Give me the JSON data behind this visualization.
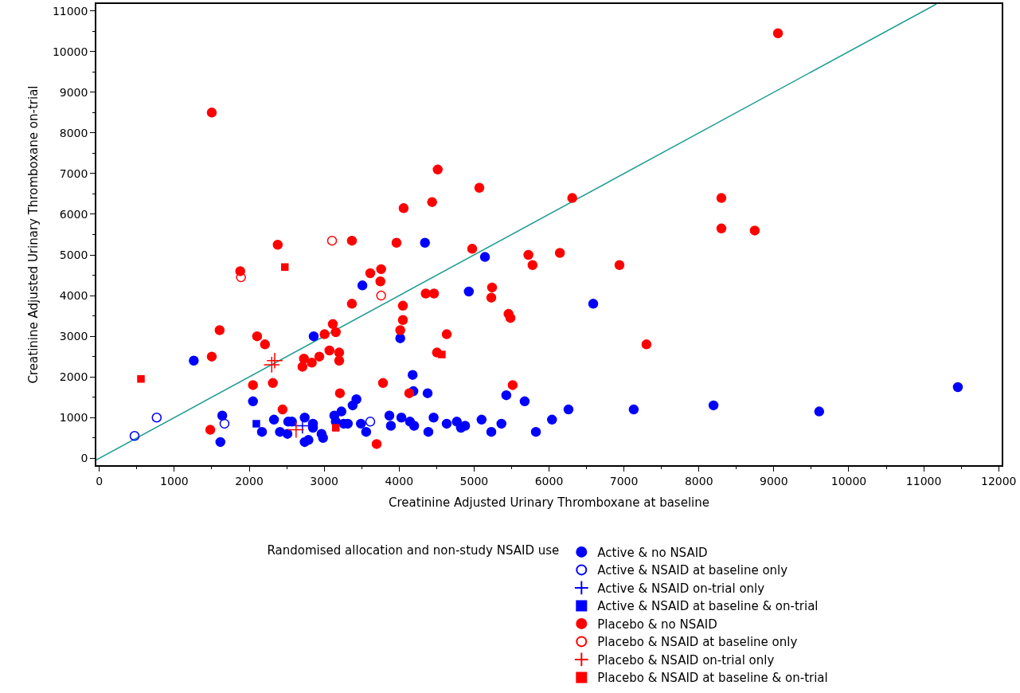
{
  "chart_data": {
    "type": "scatter",
    "xlabel": "Creatinine Adjusted Urinary Thromboxane at baseline",
    "ylabel": "Creatinine Adjusted Urinary Thromboxane on-trial",
    "legend_title": "Randomised allocation and non-study NSAID use",
    "legend": "bottom",
    "xlim": [
      -40,
      12040
    ],
    "ylim": [
      -170,
      11170
    ],
    "xticks": [
      0,
      1000,
      2000,
      3000,
      4000,
      5000,
      6000,
      7000,
      8000,
      9000,
      10000,
      11000,
      12000
    ],
    "yticks": [
      0,
      1000,
      2000,
      3000,
      4000,
      5000,
      6000,
      7000,
      8000,
      9000,
      10000,
      11000
    ],
    "series": [
      {
        "type": "line",
        "color": "#1a9a8f",
        "x": [
          -40,
          11170
        ],
        "values": [
          -40,
          11170
        ],
        "marker": "none",
        "line_style": "solid"
      },
      {
        "name": "Active & no NSAID",
        "color": "#0000ff",
        "marker": "circle",
        "x": [
          1260,
          2860,
          2050,
          1640,
          1615,
          2170,
          2330,
          2410,
          2510,
          2520,
          2570,
          2740,
          2740,
          2790,
          2850,
          2850,
          2965,
          2985,
          3135,
          3155,
          3230,
          3260,
          3315,
          3380,
          3430,
          3490,
          3560,
          3870,
          3890,
          4015,
          4030,
          4145,
          4180,
          4190,
          4380,
          4200,
          4390,
          4460,
          4635,
          4770,
          4825,
          4880,
          5100,
          5230,
          5365,
          5430,
          5675,
          5825,
          6040,
          6260,
          6590,
          7130,
          8195,
          9605,
          11455,
          5145,
          3510,
          4345,
          4930
        ],
        "values": [
          2400,
          3000,
          1400,
          1050,
          400,
          650,
          950,
          650,
          600,
          900,
          900,
          1000,
          400,
          450,
          850,
          750,
          600,
          500,
          1050,
          900,
          1150,
          850,
          850,
          1300,
          1450,
          850,
          650,
          1050,
          800,
          2950,
          1000,
          900,
          2050,
          1650,
          1600,
          800,
          650,
          1000,
          850,
          900,
          750,
          800,
          950,
          650,
          850,
          1550,
          1400,
          650,
          950,
          1200,
          3800,
          1200,
          1300,
          1150,
          1750,
          4950,
          4250,
          5300,
          4100
        ]
      },
      {
        "name": "Active & NSAID at baseline only",
        "color": "#0000ff",
        "marker": "circle-open",
        "x": [
          470,
          765,
          1670,
          3615
        ],
        "values": [
          550,
          1000,
          850,
          900
        ]
      },
      {
        "name": "Active & NSAID on-trial only",
        "color": "#0000ff",
        "marker": "cross",
        "x": [
          2710
        ],
        "values": [
          800
        ]
      },
      {
        "name": "Active & NSAID at baseline & on-trial",
        "color": "#0000ff",
        "marker": "square",
        "x": [
          2095
        ],
        "values": [
          850
        ]
      },
      {
        "name": "Placebo & no NSAID",
        "color": "#ff0000",
        "marker": "circle",
        "x": [
          1605,
          1500,
          2105,
          2210,
          2050,
          2315,
          2445,
          1480,
          2730,
          2710,
          2835,
          2935,
          3005,
          3115,
          3155,
          3070,
          3200,
          3200,
          3370,
          3785,
          3210,
          3700,
          4050,
          4050,
          4015,
          4135,
          4635,
          4505,
          5460,
          5485,
          5230,
          5515,
          7300,
          1500,
          4515,
          5070,
          4440,
          4060,
          3370,
          3965,
          2380,
          1880,
          4975,
          3760,
          3615,
          3750,
          4355,
          4465,
          5240,
          9055,
          6310,
          8300,
          8300,
          8745,
          5725,
          6145,
          5780,
          6940
        ],
        "values": [
          3150,
          2500,
          3000,
          2800,
          1800,
          1850,
          1200,
          700,
          2450,
          2250,
          2350,
          2500,
          3050,
          3300,
          3100,
          2650,
          2600,
          2400,
          3800,
          1850,
          1600,
          350,
          3750,
          3400,
          3150,
          1600,
          3050,
          2600,
          3550,
          3450,
          3950,
          1800,
          2800,
          8500,
          7100,
          6650,
          6300,
          6150,
          5350,
          5300,
          5250,
          4600,
          5150,
          4650,
          4550,
          4350,
          4050,
          4050,
          4200,
          10450,
          6400,
          6400,
          5650,
          5600,
          5000,
          5050,
          4750,
          4750
        ]
      },
      {
        "name": "Placebo & NSAID at baseline only",
        "color": "#ff0000",
        "marker": "circle-open",
        "x": [
          3105,
          1890,
          3760
        ],
        "values": [
          5350,
          4450,
          4000
        ]
      },
      {
        "name": "Placebo & NSAID on-trial only",
        "color": "#ff0000",
        "marker": "cross",
        "x": [
          2300,
          2340,
          2625
        ],
        "values": [
          2300,
          2400,
          700
        ]
      },
      {
        "name": "Placebo & NSAID at baseline & on-trial",
        "color": "#ff0000",
        "marker": "square",
        "x": [
          555,
          2475,
          3155,
          4570
        ],
        "values": [
          1950,
          4700,
          750,
          2550
        ]
      }
    ]
  }
}
